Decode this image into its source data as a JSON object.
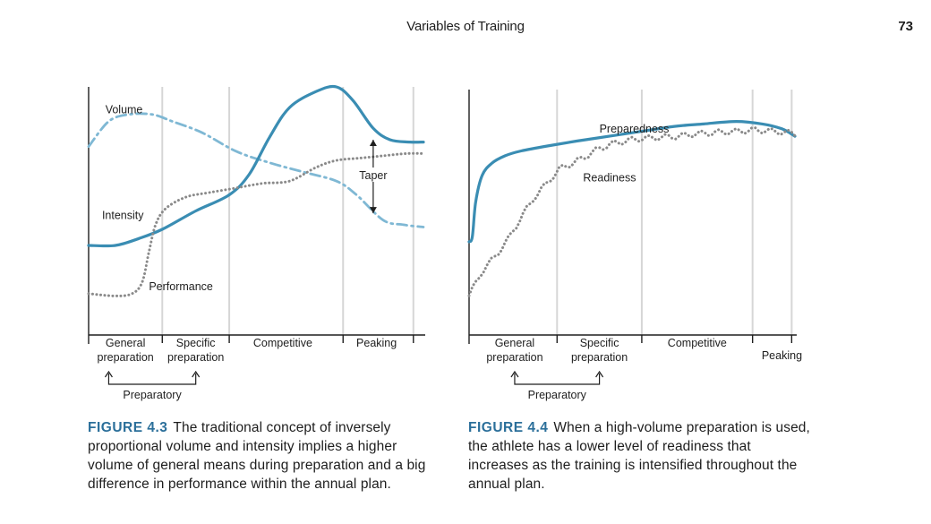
{
  "header": {
    "running_title": "Variables of Training",
    "page_number": "73"
  },
  "colors": {
    "solid_line": "#3a8db3",
    "dashdot_line": "#7fb8d4",
    "dotted_line": "#8a8a8a",
    "grid": "#d6d6d6",
    "figure_number": "#2b6f9a"
  },
  "chart_data": [
    {
      "id": "fig-4-3",
      "type": "line",
      "x_phases": [
        "General preparation",
        "Specific preparation",
        "Competitive",
        "Peaking"
      ],
      "x_range": [
        0,
        10
      ],
      "y_range": [
        0,
        10
      ],
      "grid": "vertical lines at phase boundaries",
      "phase_boundaries": [
        2.2,
        4.2,
        7.6,
        9.7
      ],
      "phase_labels": [
        {
          "line1": "General",
          "line2": "preparation",
          "at": 1.1
        },
        {
          "line1": "Specific",
          "line2": "preparation",
          "at": 3.2
        },
        {
          "line1": "Competitive",
          "line2": "",
          "at": 5.8
        },
        {
          "line1": "Peaking",
          "line2": "",
          "at": 8.6
        }
      ],
      "bracket": {
        "label": "Preparatory",
        "from": 0.6,
        "to": 3.2
      },
      "series": [
        {
          "name": "Volume",
          "style": "dash-dot",
          "label_at": [
            0.5,
            9.8
          ],
          "x": [
            0,
            0.6,
            1.2,
            1.9,
            2.5,
            3.4,
            4.4,
            5.4,
            6.4,
            7.4,
            8.0,
            8.8,
            9.4,
            10
          ],
          "y": [
            8.2,
            9.3,
            9.6,
            9.6,
            9.3,
            8.8,
            8.0,
            7.5,
            7.1,
            6.7,
            6.1,
            5.0,
            4.8,
            4.7
          ]
        },
        {
          "name": "Intensity",
          "style": "solid",
          "label_at": [
            0.4,
            5.2
          ],
          "x": [
            0,
            0.8,
            1.5,
            2.2,
            3.2,
            4.2,
            4.8,
            5.4,
            6.0,
            6.8,
            7.4,
            7.9,
            8.5,
            9.0,
            9.6,
            10
          ],
          "y": [
            3.9,
            3.9,
            4.2,
            4.6,
            5.4,
            6.1,
            7.0,
            8.6,
            9.9,
            10.6,
            10.8,
            10.2,
            9.0,
            8.5,
            8.4,
            8.4
          ]
        },
        {
          "name": "Performance",
          "style": "dotted",
          "label_at": [
            1.8,
            2.1
          ],
          "x": [
            0,
            0.8,
            1.3,
            1.6,
            1.8,
            2.0,
            2.3,
            2.9,
            3.6,
            4.4,
            5.2,
            6.0,
            6.8,
            7.4,
            8.1,
            8.8,
            9.5,
            10
          ],
          "y": [
            1.8,
            1.7,
            1.8,
            2.3,
            3.6,
            4.8,
            5.5,
            6.0,
            6.2,
            6.4,
            6.6,
            6.7,
            7.3,
            7.6,
            7.7,
            7.8,
            7.9,
            7.9
          ]
        }
      ],
      "annotations": [
        {
          "text": "Taper",
          "x": 8.5,
          "y_top": 8.5,
          "y_bottom": 5.3
        }
      ]
    },
    {
      "id": "fig-4-4",
      "type": "line",
      "x_phases": [
        "General preparation",
        "Specific preparation",
        "Competitive",
        "Peaking"
      ],
      "x_range": [
        0,
        10
      ],
      "y_range": [
        0,
        10
      ],
      "grid": "vertical lines at phase boundaries",
      "phase_boundaries": [
        2.7,
        5.3,
        8.7,
        9.9
      ],
      "phase_labels": [
        {
          "line1": "General",
          "line2": "preparation",
          "at": 1.4
        },
        {
          "line1": "Specific",
          "line2": "preparation",
          "at": 4.0
        },
        {
          "line1": "Competitive",
          "line2": "",
          "at": 7.0
        },
        {
          "line1": "Peaking",
          "line2": "",
          "at": 9.6
        }
      ],
      "bracket": {
        "label": "Preparatory",
        "from": 1.4,
        "to": 4.0
      },
      "series": [
        {
          "name": "Preparedness",
          "style": "solid",
          "label_at": [
            4.0,
            8.4
          ],
          "x": [
            0,
            0.1,
            0.2,
            0.4,
            0.7,
            1.1,
            1.6,
            2.4,
            3.3,
            4.3,
            5.3,
            6.3,
            7.2,
            8.2,
            9.0,
            9.6,
            10
          ],
          "y": [
            3.8,
            4.0,
            5.4,
            6.5,
            7.0,
            7.3,
            7.5,
            7.7,
            7.9,
            8.1,
            8.3,
            8.5,
            8.6,
            8.7,
            8.6,
            8.4,
            8.1
          ],
          "wave": false
        },
        {
          "name": "Readiness",
          "style": "dotted",
          "label_at": [
            3.5,
            6.4
          ],
          "x": [
            0,
            0.4,
            0.8,
            1.2,
            1.6,
            2.0,
            2.4,
            2.8,
            3.2,
            3.6,
            4.0,
            4.4,
            4.8,
            5.2,
            5.8,
            6.4,
            7.0,
            7.6,
            8.2,
            8.8,
            9.4,
            10
          ],
          "y": [
            1.6,
            2.6,
            3.2,
            3.9,
            4.8,
            5.6,
            6.2,
            6.8,
            7.0,
            7.3,
            7.6,
            7.8,
            7.9,
            8.0,
            8.05,
            8.1,
            8.2,
            8.25,
            8.3,
            8.35,
            8.3,
            8.2
          ],
          "wave": true
        }
      ],
      "annotations": []
    }
  ],
  "captions": [
    {
      "figure_number": "FIGURE 4.3",
      "text": "The traditional concept of inversely proportional volume and intensity implies a higher volume of general means during preparation and a big difference in performance within the annual plan."
    },
    {
      "figure_number": "FIGURE 4.4",
      "text": "When a high-volume preparation is used, the athlete has a lower level of readiness that increases as the training is intensified throughout the annual plan."
    }
  ]
}
